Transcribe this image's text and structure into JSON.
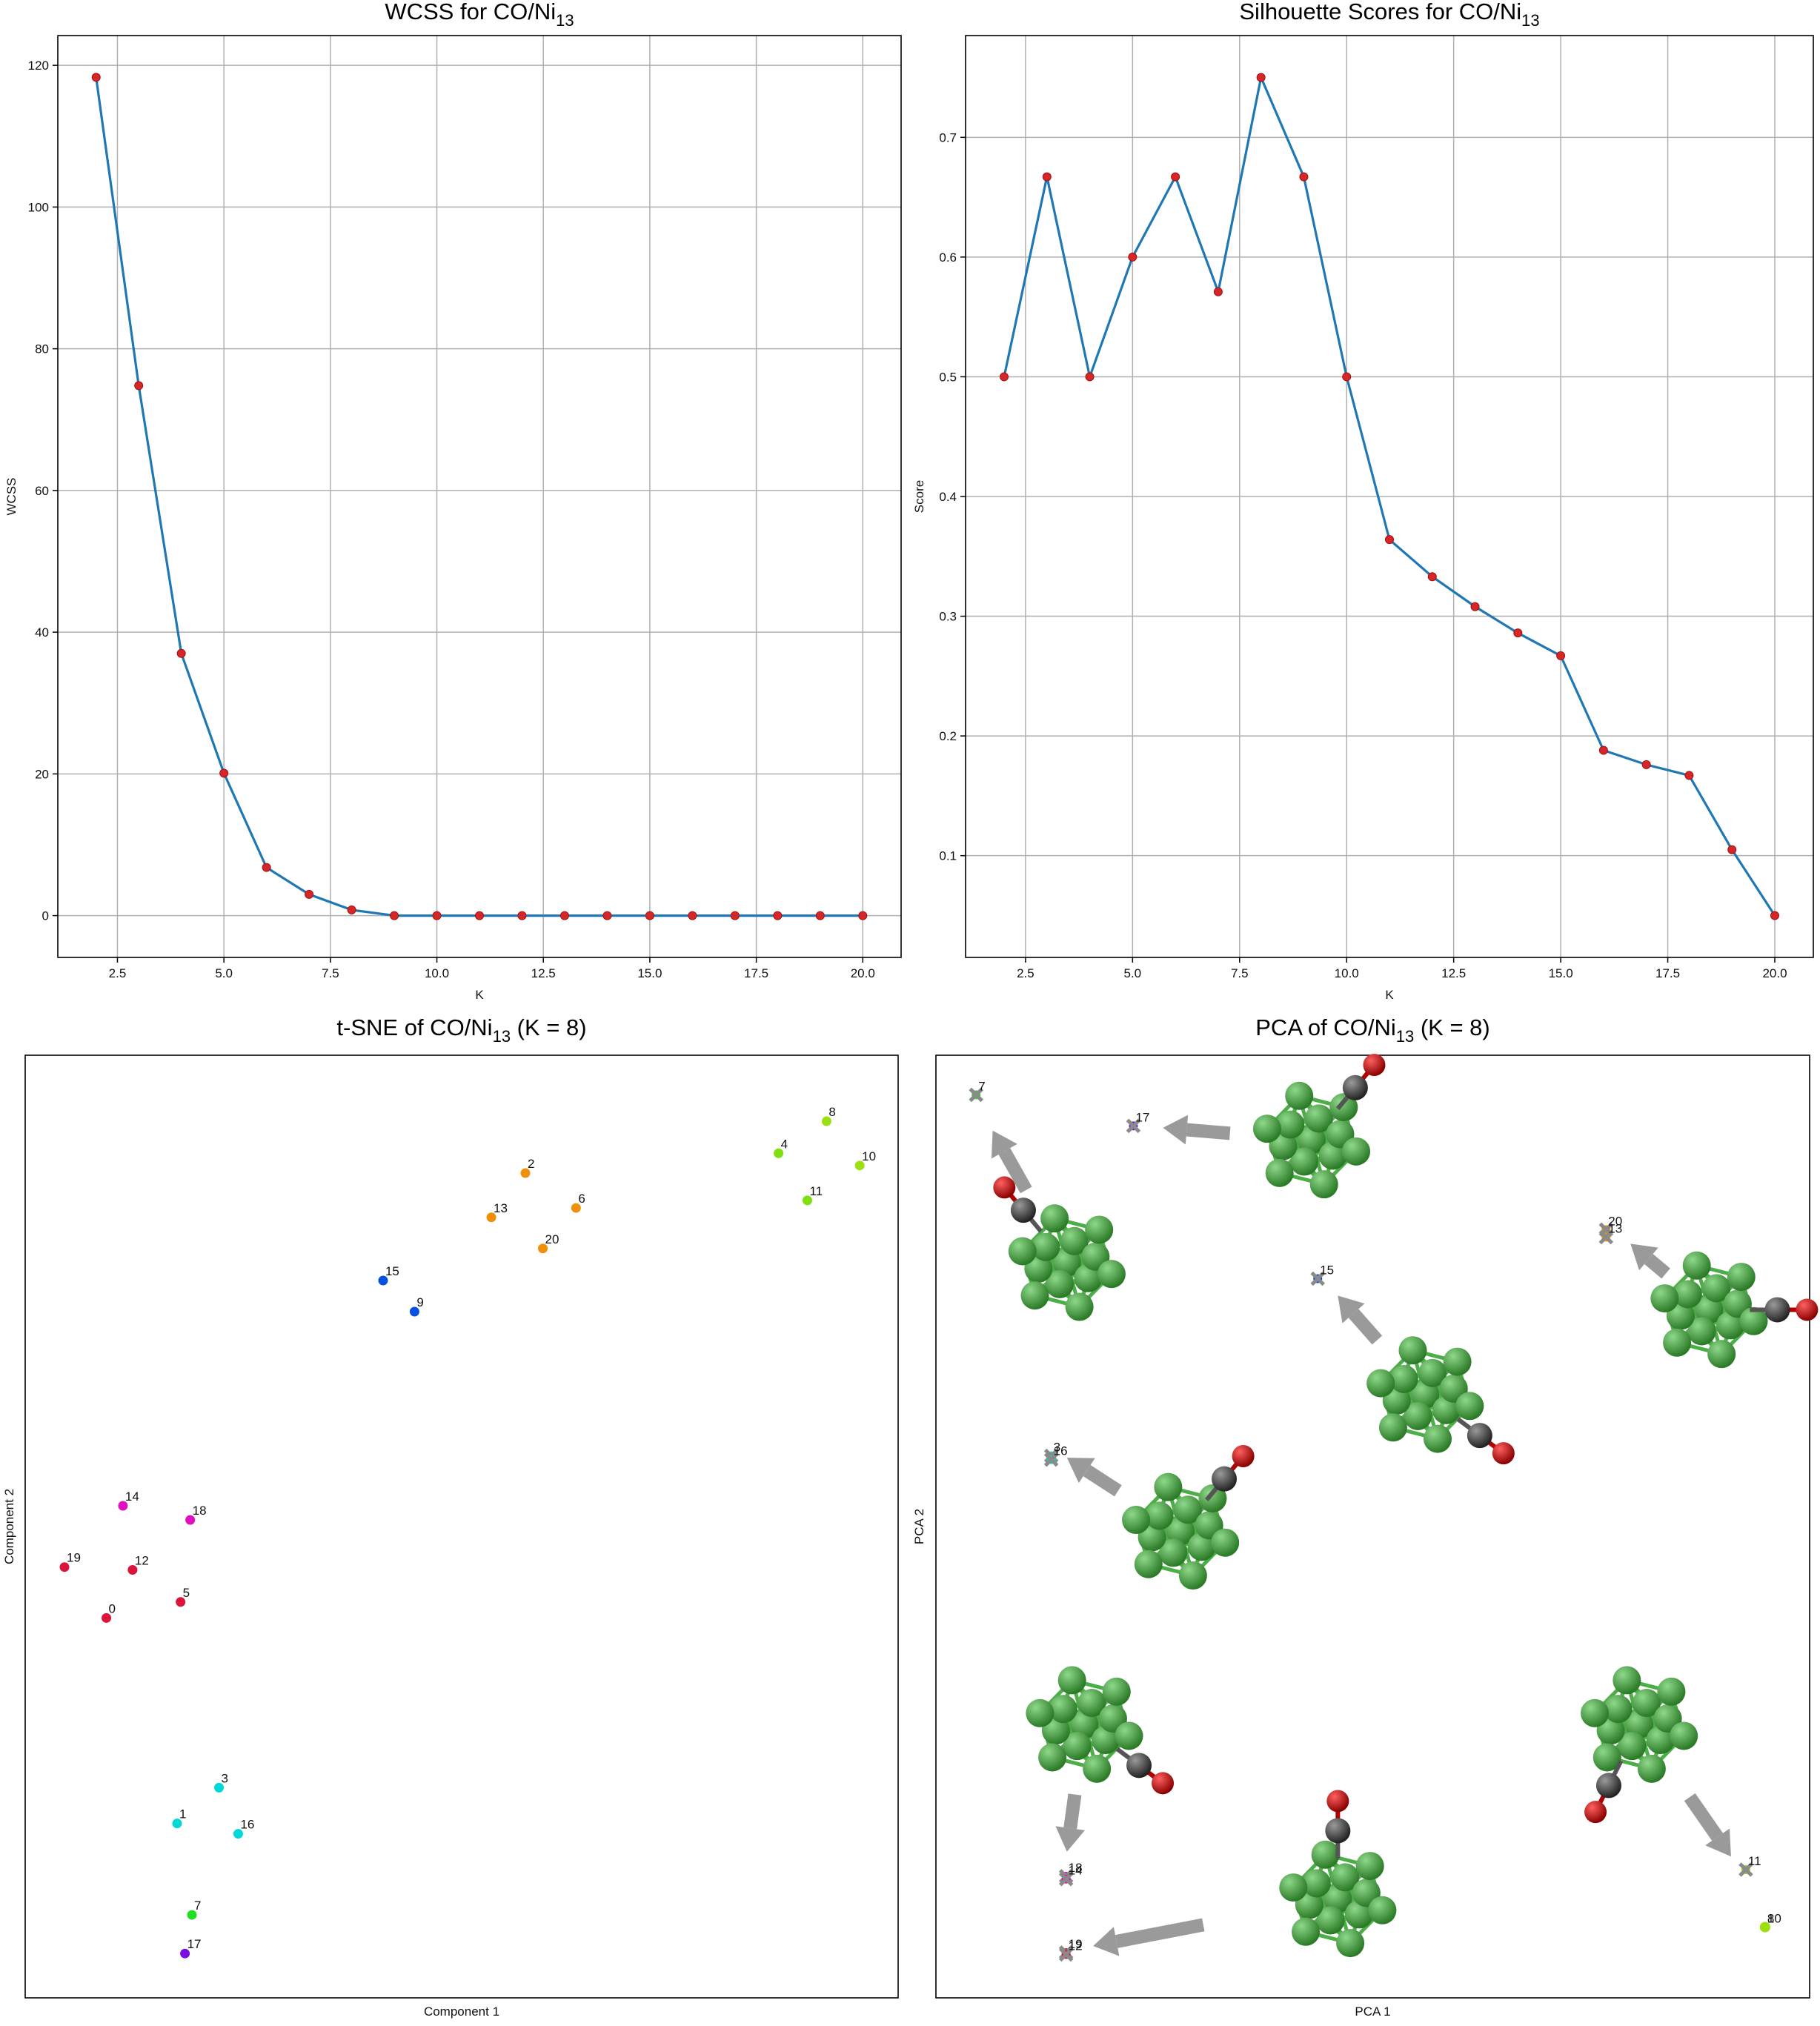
{
  "colors": {
    "line": "#1f77b4",
    "marker": "#d62728",
    "grid": "#b0b0b0",
    "ni_atom": "#3f9e3a",
    "ni_bond": "#4cae46",
    "carbon": "#3a3a3a",
    "oxygen": "#d00000",
    "arrow": "#9a9a9a",
    "cross": "#8a8a8a"
  },
  "chart_data": [
    {
      "type": "line",
      "title_main": "WCSS for CO/Ni",
      "title_sub": "13",
      "title_tail": "",
      "xlabel": "K",
      "ylabel": "WCSS",
      "x": [
        2,
        3,
        4,
        5,
        6,
        7,
        8,
        9,
        10,
        11,
        12,
        13,
        14,
        15,
        16,
        17,
        18,
        19,
        20
      ],
      "y": [
        118.3,
        74.8,
        37.0,
        20.1,
        6.8,
        3.0,
        0.8,
        0,
        0,
        0,
        0,
        0,
        0,
        0,
        0,
        0,
        0,
        0,
        0
      ],
      "xlim": [
        1.1,
        20.9
      ],
      "ylim": [
        -5.9,
        124.2
      ],
      "xticks": [
        2.5,
        5.0,
        7.5,
        10.0,
        12.5,
        15.0,
        17.5,
        20.0
      ],
      "xticklabels": [
        "2.5",
        "5.0",
        "7.5",
        "10.0",
        "12.5",
        "15.0",
        "17.5",
        "20.0"
      ],
      "yticks": [
        0,
        20,
        40,
        60,
        80,
        100,
        120
      ],
      "yticklabels": [
        "0",
        "20",
        "40",
        "60",
        "80",
        "100",
        "120"
      ],
      "grid": true
    },
    {
      "type": "line",
      "title_main": "Silhouette Scores for CO/Ni",
      "title_sub": "13",
      "title_tail": "",
      "xlabel": "K",
      "ylabel": "Score",
      "x": [
        2,
        3,
        4,
        5,
        6,
        7,
        8,
        9,
        10,
        11,
        12,
        13,
        14,
        15,
        16,
        17,
        18,
        19,
        20
      ],
      "y": [
        0.5,
        0.667,
        0.5,
        0.6,
        0.667,
        0.571,
        0.75,
        0.667,
        0.5,
        0.364,
        0.333,
        0.308,
        0.286,
        0.267,
        0.188,
        0.176,
        0.167,
        0.105,
        0.05
      ],
      "xlim": [
        1.1,
        20.9
      ],
      "ylim": [
        0.015,
        0.785
      ],
      "xticks": [
        2.5,
        5.0,
        7.5,
        10.0,
        12.5,
        15.0,
        17.5,
        20.0
      ],
      "xticklabels": [
        "2.5",
        "5.0",
        "7.5",
        "10.0",
        "12.5",
        "15.0",
        "17.5",
        "20.0"
      ],
      "yticks": [
        0.1,
        0.2,
        0.3,
        0.4,
        0.5,
        0.6,
        0.7
      ],
      "yticklabels": [
        "0.1",
        "0.2",
        "0.3",
        "0.4",
        "0.5",
        "0.6",
        "0.7"
      ],
      "grid": true
    },
    {
      "type": "scatter",
      "title_main": "t-SNE of CO/Ni",
      "title_sub": "13",
      "title_tail": " (K = 8)",
      "xlabel": "Component 1",
      "ylabel": "Component 2",
      "xlim": [
        0,
        100
      ],
      "ylim": [
        0,
        100
      ],
      "grid": false,
      "points": [
        {
          "label": "0",
          "x": 9.3,
          "y": 40.3,
          "color": "#dc143c"
        },
        {
          "label": "1",
          "x": 17.4,
          "y": 18.5,
          "color": "#00d8d8"
        },
        {
          "label": "2",
          "x": 57.3,
          "y": 87.5,
          "color": "#f0900a"
        },
        {
          "label": "3",
          "x": 22.2,
          "y": 22.3,
          "color": "#00d8d8"
        },
        {
          "label": "4",
          "x": 86.3,
          "y": 89.6,
          "color": "#7de010"
        },
        {
          "label": "5",
          "x": 17.8,
          "y": 42.0,
          "color": "#dc143c"
        },
        {
          "label": "6",
          "x": 63.1,
          "y": 83.8,
          "color": "#f0900a"
        },
        {
          "label": "7",
          "x": 19.1,
          "y": 8.8,
          "color": "#22dd22"
        },
        {
          "label": "8",
          "x": 91.8,
          "y": 93.0,
          "color": "#9be010"
        },
        {
          "label": "9",
          "x": 44.6,
          "y": 72.8,
          "color": "#0a50e0"
        },
        {
          "label": "10",
          "x": 95.6,
          "y": 88.3,
          "color": "#9be010"
        },
        {
          "label": "11",
          "x": 89.6,
          "y": 84.6,
          "color": "#7de010"
        },
        {
          "label": "12",
          "x": 12.3,
          "y": 45.4,
          "color": "#dc143c"
        },
        {
          "label": "13",
          "x": 53.4,
          "y": 82.8,
          "color": "#f0900a"
        },
        {
          "label": "14",
          "x": 11.2,
          "y": 52.2,
          "color": "#e010c0"
        },
        {
          "label": "15",
          "x": 41.0,
          "y": 76.1,
          "color": "#0a50e0"
        },
        {
          "label": "16",
          "x": 24.4,
          "y": 17.4,
          "color": "#00d8d8"
        },
        {
          "label": "17",
          "x": 18.3,
          "y": 4.7,
          "color": "#7a10e0"
        },
        {
          "label": "18",
          "x": 18.9,
          "y": 50.7,
          "color": "#e010c0"
        },
        {
          "label": "19",
          "x": 4.5,
          "y": 45.7,
          "color": "#dc143c"
        },
        {
          "label": "20",
          "x": 59.3,
          "y": 79.5,
          "color": "#f0900a"
        }
      ]
    },
    {
      "type": "scatter",
      "title_main": "PCA of CO/Ni",
      "title_sub": "13",
      "title_tail": " (K = 8)",
      "xlabel": "PCA 1",
      "ylabel": "PCA 2",
      "xlim": [
        0,
        100
      ],
      "ylim": [
        0,
        100
      ],
      "grid": false,
      "points": [
        {
          "label": "7",
          "x": 4.6,
          "y": 95.8,
          "color": "#22dd22",
          "cross": true
        },
        {
          "label": "17",
          "x": 22.6,
          "y": 92.5,
          "color": "#7a10e0",
          "cross": true
        },
        {
          "label": "20",
          "x": 76.7,
          "y": 81.5,
          "color": "#f0900a",
          "cross": true
        },
        {
          "label": "13",
          "x": 76.7,
          "y": 80.7,
          "color": "#f0900a",
          "cross": true
        },
        {
          "label": "15",
          "x": 43.7,
          "y": 76.3,
          "color": "#0a50e0",
          "cross": true
        },
        {
          "label": "3",
          "x": 13.2,
          "y": 57.5,
          "color": "#00d8d8",
          "cross": true
        },
        {
          "label": "16",
          "x": 13.2,
          "y": 57.1,
          "color": "#00d8d8",
          "cross": true
        },
        {
          "label": "18",
          "x": 14.9,
          "y": 12.9,
          "color": "#e010c0",
          "cross": true
        },
        {
          "label": "14",
          "x": 14.9,
          "y": 12.6,
          "color": "#e010c0",
          "cross": true
        },
        {
          "label": "19",
          "x": 14.9,
          "y": 4.8,
          "color": "#dc143c",
          "cross": true
        },
        {
          "label": "12",
          "x": 14.9,
          "y": 4.6,
          "color": "#dc143c",
          "cross": true
        },
        {
          "label": "11",
          "x": 92.7,
          "y": 13.6,
          "color": "#7de010",
          "cross": true
        },
        {
          "label": "8",
          "x": 94.9,
          "y": 7.5,
          "color": "#9be010",
          "cross": false
        },
        {
          "label": "10",
          "x": 94.9,
          "y": 7.5,
          "color": "#9be010",
          "cross": false
        }
      ],
      "structures": [
        {
          "x": 15.0,
          "y": 78.0,
          "co": "up-left",
          "arrow_to": [
            6.5,
            92.0
          ]
        },
        {
          "x": 43.0,
          "y": 91.0,
          "co": "up-right",
          "arrow_to": [
            26.0,
            92.3
          ]
        },
        {
          "x": 88.5,
          "y": 73.0,
          "co": "center",
          "arrow_to": [
            79.5,
            80.0
          ]
        },
        {
          "x": 56.0,
          "y": 64.0,
          "co": "down-right",
          "arrow_to": [
            46.0,
            74.5
          ]
        },
        {
          "x": 28.0,
          "y": 49.5,
          "co": "up-right",
          "arrow_to": [
            15.0,
            57.3
          ]
        },
        {
          "x": 17.0,
          "y": 29.0,
          "co": "down-right",
          "arrow_to": [
            15.0,
            15.5
          ]
        },
        {
          "x": 46.0,
          "y": 10.5,
          "co": "up",
          "arrow_to": [
            18.0,
            5.5
          ]
        },
        {
          "x": 80.5,
          "y": 29.0,
          "co": "down-left",
          "arrow_to": [
            91.0,
            15.0
          ]
        }
      ]
    }
  ]
}
